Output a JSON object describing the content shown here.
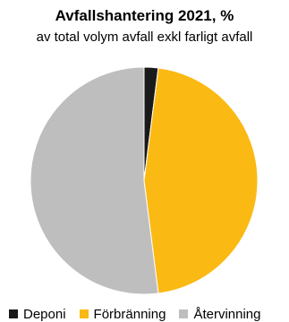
{
  "chart_data": {
    "type": "pie",
    "title": "Avfallshantering 2021, %",
    "subtitle": "av total volym avfall exkl farligt avfall",
    "slices": [
      {
        "label": "Deponi",
        "value": 2,
        "color": "#1a1a1a"
      },
      {
        "label": "Förbränning",
        "value": 46,
        "color": "#fbb913"
      },
      {
        "label": "Återvinning",
        "value": 52,
        "color": "#bebebe"
      }
    ],
    "legend_position": "bottom"
  }
}
